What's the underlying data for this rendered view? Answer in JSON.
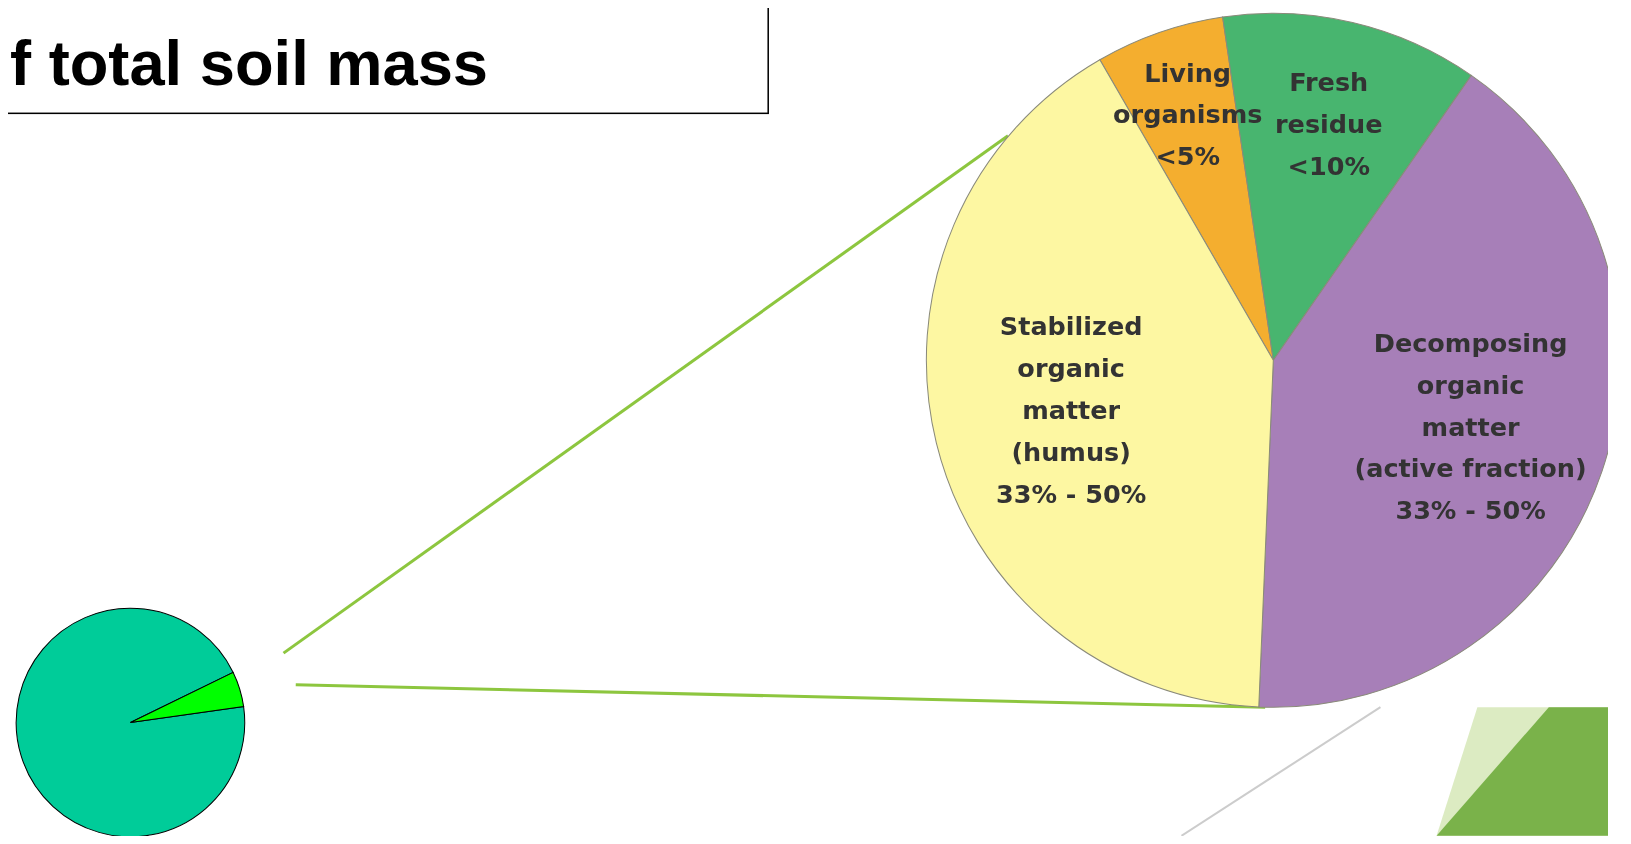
{
  "chart_data": [
    {
      "type": "pie",
      "title": "f total soil mass",
      "categories": [
        null,
        null
      ],
      "values": [
        95,
        5
      ],
      "colors": [
        "#00cc99",
        "#00ff00"
      ],
      "legend": false
    },
    {
      "type": "pie",
      "categories": [
        "Living\norganisms\n<5%",
        "Fresh\nresidue\n<10%",
        "Decomposing\norganic\nmatter\n(active fraction)\n33% - 50%",
        "Stabilized\norganic\nmatter\n(humus)\n33% - 50%"
      ],
      "values": [
        6,
        12,
        41,
        41
      ],
      "colors": [
        "#f4ae2f",
        "#48b56f",
        "#a77fb8",
        "#fdf7a2"
      ],
      "legend": false
    }
  ]
}
